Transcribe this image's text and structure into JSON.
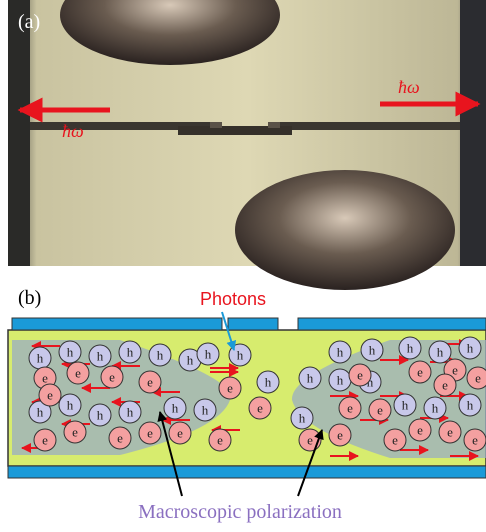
{
  "panel_a": {
    "label": "(a)",
    "left_photon": "ħω",
    "right_photon": "ħω"
  },
  "panel_b": {
    "label": "(b)",
    "photons": "Photons",
    "polarization": "Macroscopic polarization",
    "hole_label": "h",
    "electron_label": "e"
  }
}
